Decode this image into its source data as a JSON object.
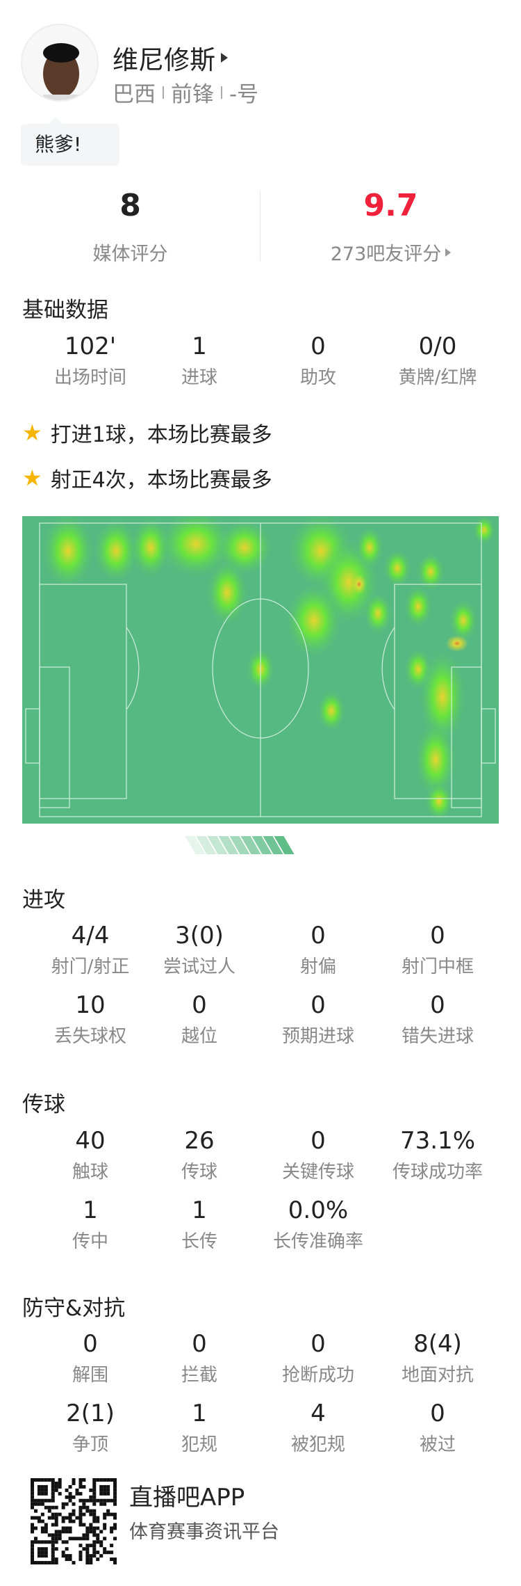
{
  "player": {
    "name": "维尼修斯",
    "country": "巴西",
    "position": "前锋",
    "number": "-号",
    "comment": "熊爹!"
  },
  "ratings": {
    "media_value": "8",
    "media_label": "媒体评分",
    "fan_value": "9.7",
    "fan_label": "273吧友评分",
    "fan_color": "#f0213a"
  },
  "basic": {
    "title": "基础数据",
    "items": [
      {
        "v": "102'",
        "l": "出场时间"
      },
      {
        "v": "1",
        "l": "进球"
      },
      {
        "v": "0",
        "l": "助攻"
      },
      {
        "v": "0/0",
        "l": "黄牌/红牌"
      }
    ]
  },
  "highlights": [
    "打进1球，本场比赛最多",
    "射正4次，本场比赛最多"
  ],
  "attack": {
    "title": "进攻",
    "items": [
      {
        "v": "4/4",
        "l": "射门/射正"
      },
      {
        "v": "3(0)",
        "l": "尝试过人"
      },
      {
        "v": "0",
        "l": "射偏"
      },
      {
        "v": "0",
        "l": "射门中框"
      },
      {
        "v": "10",
        "l": "丢失球权"
      },
      {
        "v": "0",
        "l": "越位"
      },
      {
        "v": "0",
        "l": "预期进球"
      },
      {
        "v": "0",
        "l": "错失进球"
      }
    ]
  },
  "passing": {
    "title": "传球",
    "items": [
      {
        "v": "40",
        "l": "触球"
      },
      {
        "v": "26",
        "l": "传球"
      },
      {
        "v": "0",
        "l": "关键传球"
      },
      {
        "v": "73.1%",
        "l": "传球成功率"
      },
      {
        "v": "1",
        "l": "传中"
      },
      {
        "v": "1",
        "l": "长传"
      },
      {
        "v": "0.0%",
        "l": "长传准确率"
      }
    ]
  },
  "defense": {
    "title": "防守&对抗",
    "items": [
      {
        "v": "0",
        "l": "解围"
      },
      {
        "v": "0",
        "l": "拦截"
      },
      {
        "v": "0",
        "l": "抢断成功"
      },
      {
        "v": "8(4)",
        "l": "地面对抗"
      },
      {
        "v": "2(1)",
        "l": "争顶"
      },
      {
        "v": "1",
        "l": "犯规"
      },
      {
        "v": "4",
        "l": "被犯规"
      },
      {
        "v": "0",
        "l": "被过"
      }
    ]
  },
  "footer": {
    "brand": "直播吧APP",
    "slogan": "体育赛事资讯平台"
  },
  "colors": {
    "pitch": "#56b981",
    "accent_star": "#f5b500"
  }
}
